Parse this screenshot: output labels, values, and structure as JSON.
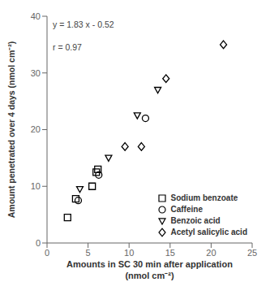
{
  "chart_data": {
    "type": "scatter",
    "xlabel": "Amounts in SC 30 min after application\n(nmol cm⁻²)",
    "ylabel": "Amount penetrated over 4 days (nmol cm⁻²)",
    "xlim": [
      0,
      25
    ],
    "ylim": [
      0,
      40
    ],
    "xticks": [
      0,
      5,
      10,
      15,
      20,
      25
    ],
    "yticks": [
      0,
      10,
      20,
      30,
      40
    ],
    "grid": false,
    "legend": "lower right",
    "series": [
      {
        "name": "Sodium benzoate",
        "color": "#000000",
        "marker": "square",
        "x": [
          2.5,
          3.5,
          5.5,
          6.0,
          6.2
        ],
        "values": [
          4.5,
          7.8,
          10.0,
          12.5,
          13.0
        ]
      },
      {
        "name": "Caffeine",
        "color": "#000000",
        "marker": "circle",
        "x": [
          3.8,
          6.3,
          12.0
        ],
        "values": [
          7.5,
          12.0,
          22.0
        ]
      },
      {
        "name": "Benzoic acid",
        "color": "#000000",
        "marker": "triangle-down",
        "x": [
          4.0,
          7.5,
          11.0,
          13.5
        ],
        "values": [
          9.5,
          15.0,
          22.5,
          27.0
        ]
      },
      {
        "name": "Acetyl salicylic acid",
        "color": "#000000",
        "marker": "diamond",
        "x": [
          9.5,
          11.5,
          14.5,
          21.5
        ],
        "values": [
          17.0,
          17.0,
          29.0,
          35.0
        ]
      }
    ],
    "annotations": [
      {
        "text": "y = 1.83 x - 0.52",
        "x": 0.5,
        "y": 38.5
      },
      {
        "text": "r = 0.97",
        "x": 0.5,
        "y": 34.5
      }
    ]
  }
}
